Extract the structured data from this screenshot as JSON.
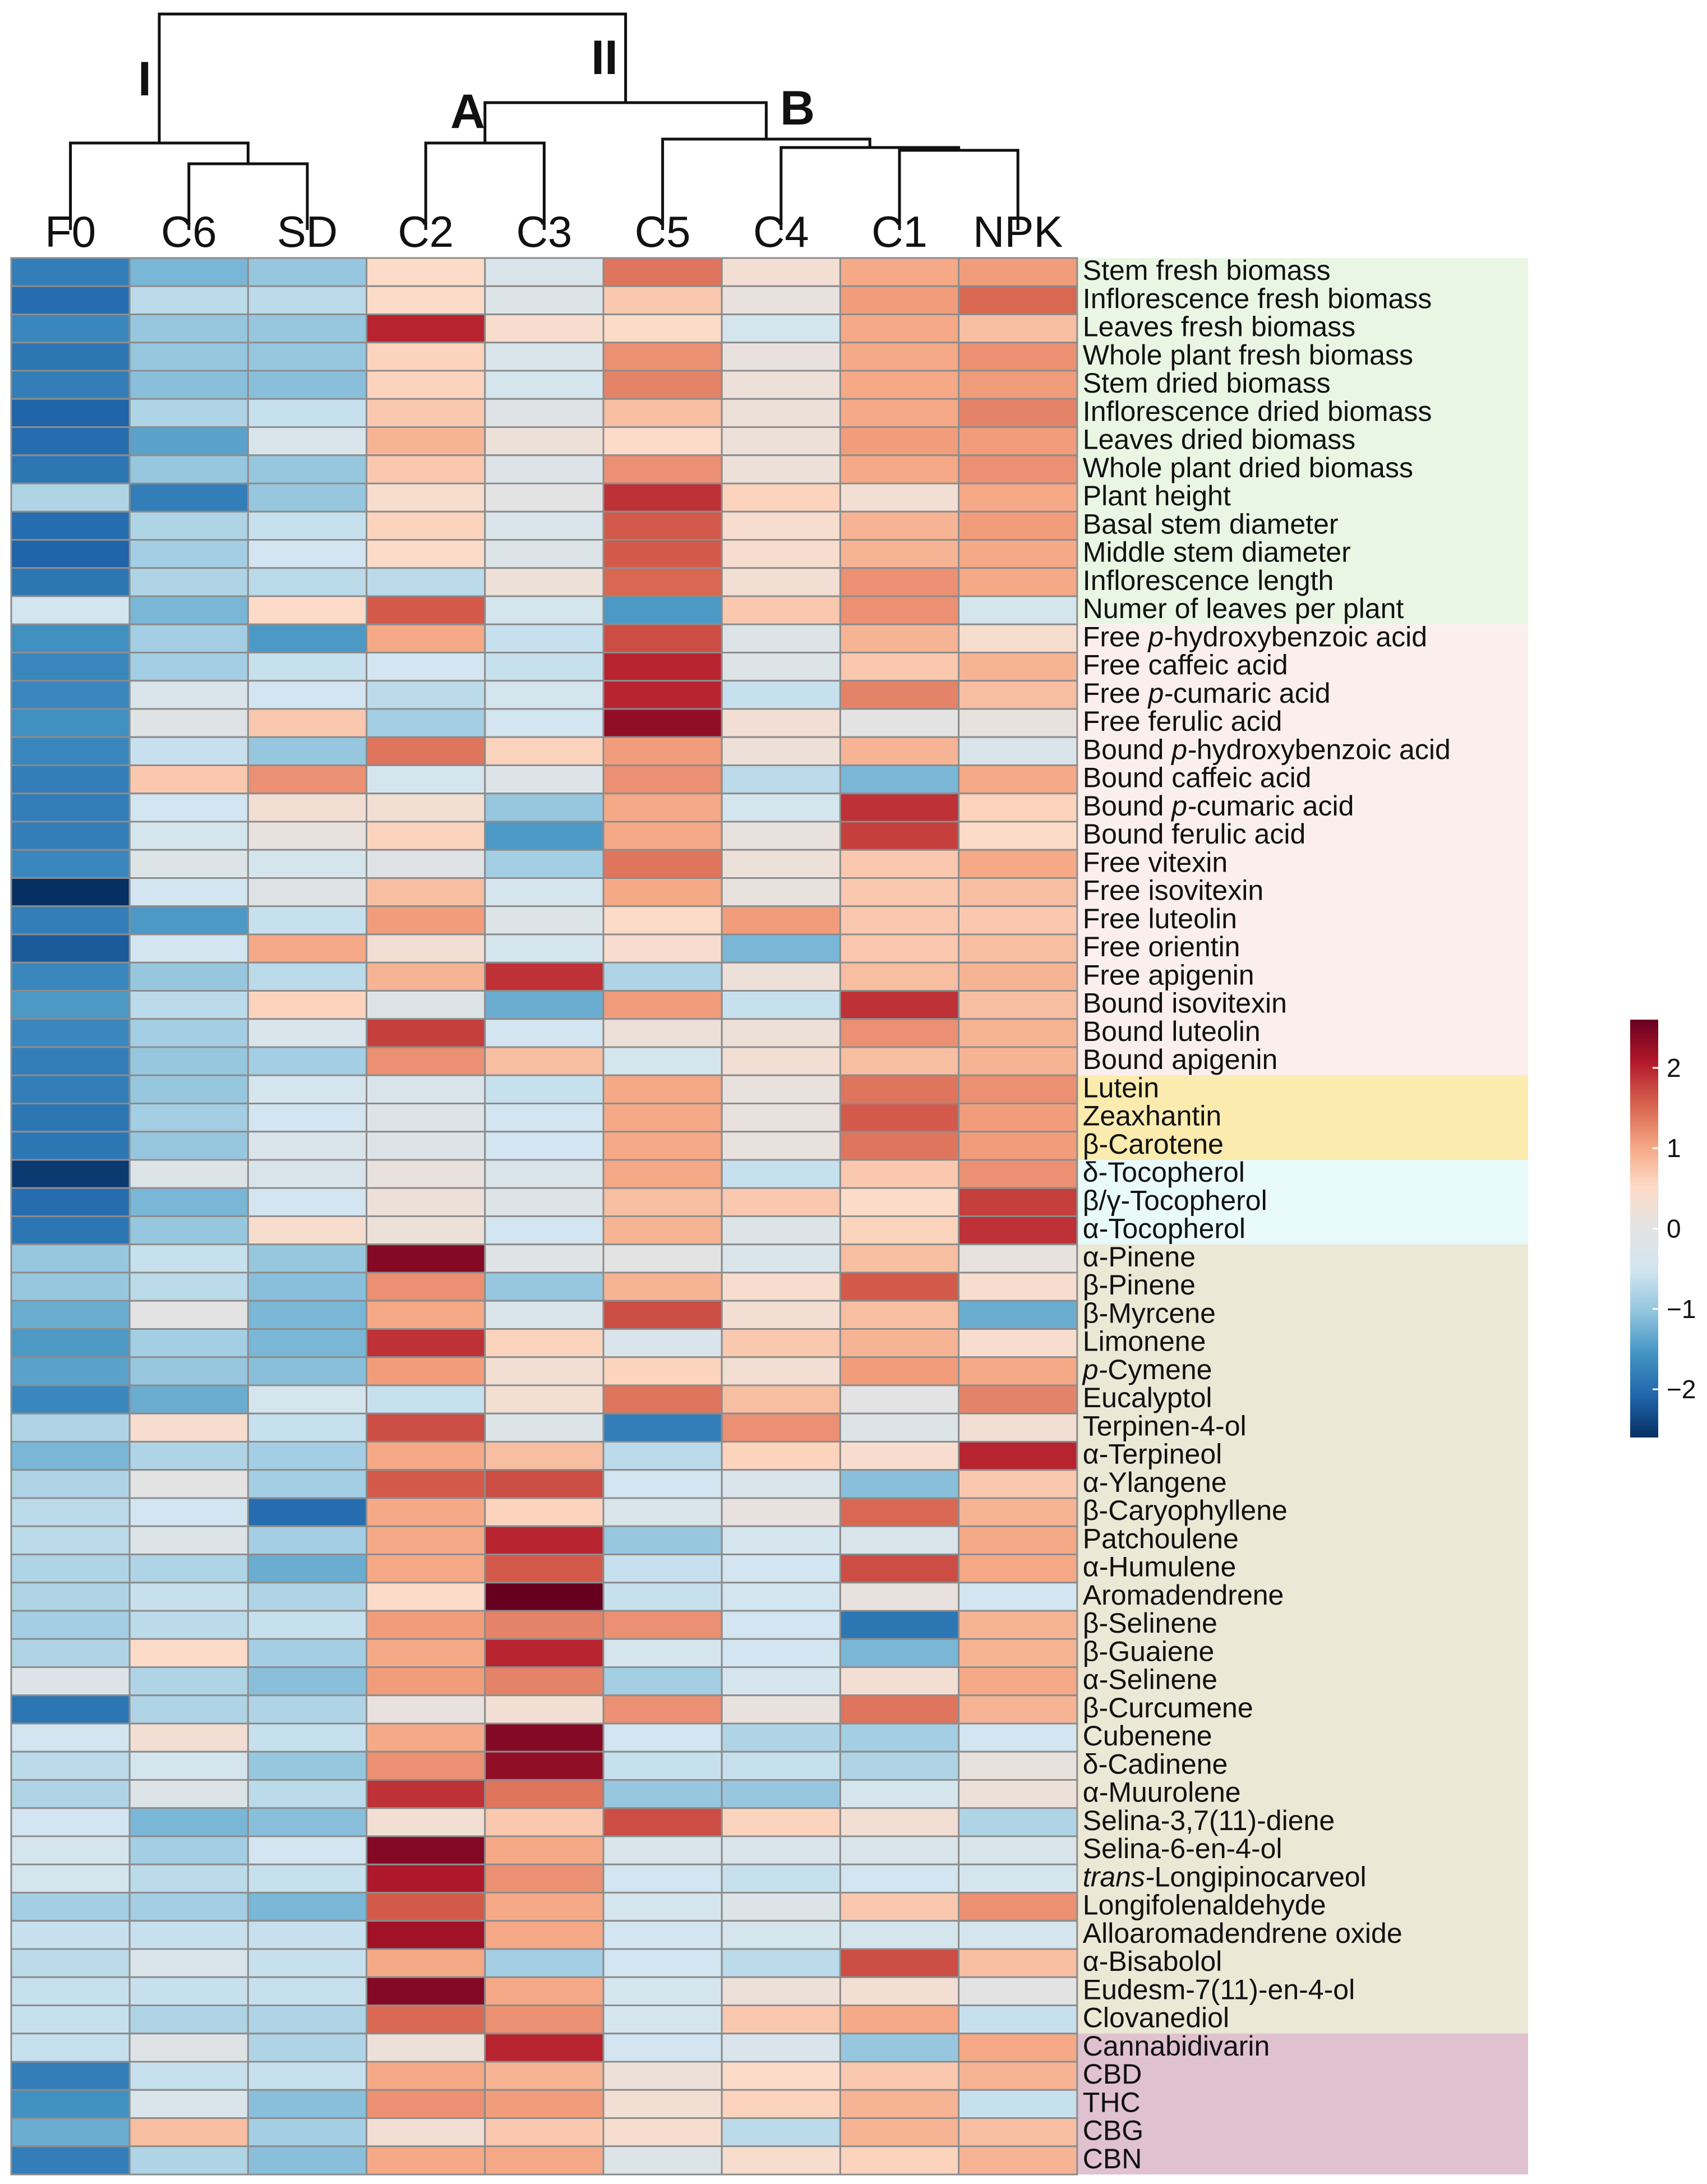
{
  "chart_data": {
    "type": "heatmap",
    "title": "",
    "columns": [
      "F0",
      "C6",
      "SD",
      "C2",
      "C3",
      "C5",
      "C4",
      "C1",
      "NPK"
    ],
    "rows": [
      {
        "label": "Stem fresh biomass",
        "group": "biomass",
        "values": [
          -1.8,
          -1.2,
          -1.0,
          0.5,
          -0.3,
          1.4,
          0.3,
          1.0,
          1.1
        ]
      },
      {
        "label": "Inflorescence fresh biomass",
        "group": "biomass",
        "values": [
          -2.0,
          -0.7,
          -0.7,
          0.5,
          -0.2,
          0.7,
          0.1,
          1.1,
          1.5
        ]
      },
      {
        "label": "Leaves fresh biomass",
        "group": "biomass",
        "values": [
          -1.7,
          -1.0,
          -1.0,
          2.0,
          0.4,
          0.5,
          -0.4,
          1.0,
          0.8
        ]
      },
      {
        "label": "Whole plant fresh biomass",
        "group": "biomass",
        "values": [
          -1.9,
          -1.0,
          -1.0,
          0.6,
          -0.3,
          1.2,
          0.1,
          1.0,
          1.2
        ]
      },
      {
        "label": "Stem dried biomass",
        "group": "biomass",
        "values": [
          -1.8,
          -1.1,
          -1.1,
          0.6,
          -0.4,
          1.3,
          0.2,
          1.0,
          1.1
        ]
      },
      {
        "label": "Inflorescence dried biomass",
        "group": "biomass",
        "values": [
          -2.1,
          -0.8,
          -0.6,
          0.7,
          -0.1,
          0.8,
          0.2,
          1.0,
          1.3
        ]
      },
      {
        "label": "Leaves dried biomass",
        "group": "biomass",
        "values": [
          -2.0,
          -1.4,
          -0.3,
          0.9,
          0.2,
          0.5,
          0.2,
          1.1,
          1.1
        ]
      },
      {
        "label": "Whole plant dried biomass",
        "group": "biomass",
        "values": [
          -1.9,
          -1.0,
          -1.0,
          0.7,
          -0.2,
          1.2,
          0.2,
          1.0,
          1.2
        ]
      },
      {
        "label": "Plant height",
        "group": "biomass",
        "values": [
          -0.8,
          -1.8,
          -1.0,
          0.4,
          0.0,
          1.9,
          0.6,
          0.3,
          1.0
        ]
      },
      {
        "label": "Basal stem diameter",
        "group": "biomass",
        "values": [
          -2.0,
          -0.8,
          -0.6,
          0.6,
          -0.3,
          1.6,
          0.4,
          0.9,
          1.1
        ]
      },
      {
        "label": "Middle stem diameter",
        "group": "biomass",
        "values": [
          -2.1,
          -0.9,
          -0.5,
          0.5,
          -0.2,
          1.6,
          0.4,
          0.9,
          1.0
        ]
      },
      {
        "label": "Inflorescence length",
        "group": "biomass",
        "values": [
          -1.9,
          -0.8,
          -0.7,
          -0.7,
          0.2,
          1.5,
          0.3,
          1.2,
          1.0
        ]
      },
      {
        "label": "Numer of leaves per plant",
        "group": "biomass",
        "values": [
          -0.5,
          -1.2,
          0.5,
          1.6,
          -0.4,
          -1.5,
          0.7,
          1.2,
          -0.4
        ]
      },
      {
        "label": "Free p-hydroxybenzoic acid",
        "group": "phenolic",
        "values": [
          -1.6,
          -0.9,
          -1.5,
          1.0,
          -0.6,
          1.7,
          -0.2,
          0.9,
          0.4
        ]
      },
      {
        "label": "Free caffeic acid",
        "group": "phenolic",
        "values": [
          -1.7,
          -0.9,
          -0.6,
          -0.5,
          -0.6,
          2.0,
          -0.2,
          0.7,
          0.9
        ]
      },
      {
        "label": "Free p-cumaric acid",
        "group": "phenolic",
        "values": [
          -1.7,
          -0.3,
          -0.5,
          -0.7,
          -0.4,
          2.0,
          -0.6,
          1.3,
          0.8
        ]
      },
      {
        "label": "Free ferulic acid",
        "group": "phenolic",
        "values": [
          -1.6,
          -0.1,
          0.7,
          -0.9,
          -0.5,
          2.3,
          0.3,
          0.0,
          0.1
        ]
      },
      {
        "label": "Bound p-hydroxybenzoic acid",
        "group": "phenolic",
        "values": [
          -1.7,
          -0.6,
          -1.0,
          1.4,
          0.6,
          1.1,
          0.2,
          0.9,
          -0.3
        ]
      },
      {
        "label": "Bound caffeic acid",
        "group": "phenolic",
        "values": [
          -1.8,
          0.7,
          1.2,
          -0.4,
          -0.2,
          1.2,
          -0.7,
          -1.2,
          1.0
        ]
      },
      {
        "label": "Bound p-cumaric acid",
        "group": "phenolic",
        "values": [
          -1.8,
          -0.5,
          0.3,
          0.3,
          -1.0,
          1.0,
          -0.4,
          1.9,
          0.6
        ]
      },
      {
        "label": "Bound ferulic acid",
        "group": "phenolic",
        "values": [
          -1.8,
          -0.4,
          0.1,
          0.6,
          -1.5,
          1.0,
          0.1,
          1.8,
          0.5
        ]
      },
      {
        "label": "Free vitexin",
        "group": "phenolic",
        "values": [
          -1.7,
          -0.2,
          -0.4,
          -0.1,
          -0.9,
          1.4,
          0.2,
          0.7,
          1.0
        ]
      },
      {
        "label": "Free isovitexin",
        "group": "phenolic",
        "values": [
          -2.6,
          -0.5,
          -0.1,
          0.8,
          -0.4,
          1.0,
          0.1,
          0.7,
          0.8
        ]
      },
      {
        "label": "Free luteolin",
        "group": "phenolic",
        "values": [
          -1.8,
          -1.5,
          -0.6,
          1.1,
          -0.2,
          0.5,
          1.1,
          0.7,
          0.7
        ]
      },
      {
        "label": "Free orientin",
        "group": "phenolic",
        "values": [
          -2.2,
          -0.5,
          1.0,
          0.3,
          -0.4,
          0.4,
          -1.2,
          0.7,
          0.8
        ]
      },
      {
        "label": "Free apigenin",
        "group": "phenolic",
        "values": [
          -1.7,
          -1.0,
          -0.7,
          0.9,
          1.9,
          -0.8,
          0.2,
          0.8,
          0.9
        ]
      },
      {
        "label": "Bound isovitexin",
        "group": "phenolic",
        "values": [
          -1.5,
          -0.7,
          0.6,
          -0.2,
          -1.3,
          1.1,
          -0.6,
          1.9,
          0.8
        ]
      },
      {
        "label": "Bound luteolin",
        "group": "phenolic",
        "values": [
          -1.7,
          -0.9,
          -0.3,
          1.8,
          -0.5,
          0.2,
          0.2,
          1.2,
          0.9
        ]
      },
      {
        "label": "Bound apigenin",
        "group": "phenolic",
        "values": [
          -1.8,
          -1.0,
          -0.9,
          1.2,
          0.8,
          -0.4,
          0.3,
          0.8,
          0.9
        ]
      },
      {
        "label": "Lutein",
        "group": "carotenoid",
        "values": [
          -1.8,
          -1.0,
          -0.4,
          -0.3,
          -0.6,
          1.0,
          0.1,
          1.4,
          1.2
        ]
      },
      {
        "label": "Zeaxhantin",
        "group": "carotenoid",
        "values": [
          -1.9,
          -0.9,
          -0.5,
          -0.2,
          -0.5,
          1.0,
          0.1,
          1.6,
          1.1
        ]
      },
      {
        "label": "β-Carotene",
        "group": "carotenoid",
        "values": [
          -1.9,
          -1.0,
          -0.3,
          -0.2,
          -0.5,
          1.0,
          0.1,
          1.4,
          1.1
        ]
      },
      {
        "label": "δ-Tocopherol",
        "group": "tocopherol",
        "values": [
          -2.5,
          -0.2,
          -0.3,
          0.1,
          -0.3,
          1.0,
          -0.6,
          0.7,
          1.2
        ]
      },
      {
        "label": "β/γ-Tocopherol",
        "group": "tocopherol",
        "values": [
          -2.0,
          -1.2,
          -0.5,
          0.2,
          -0.2,
          0.8,
          0.7,
          0.5,
          1.8
        ]
      },
      {
        "label": "α-Tocopherol",
        "group": "tocopherol",
        "values": [
          -1.9,
          -1.0,
          0.4,
          0.2,
          -0.5,
          0.9,
          -0.2,
          0.6,
          1.9
        ]
      },
      {
        "label": "α-Pinene",
        "group": "terpene",
        "values": [
          -1.0,
          -0.6,
          -1.0,
          2.4,
          -0.1,
          0.0,
          -0.3,
          0.8,
          0.1
        ]
      },
      {
        "label": "β-Pinene",
        "group": "terpene",
        "values": [
          -1.0,
          -0.7,
          -1.1,
          1.2,
          -1.0,
          0.9,
          0.4,
          1.6,
          0.4
        ]
      },
      {
        "label": "β-Myrcene",
        "group": "terpene",
        "values": [
          -1.3,
          0.0,
          -1.2,
          1.0,
          -0.3,
          1.7,
          0.3,
          0.8,
          -1.3
        ]
      },
      {
        "label": "Limonene",
        "group": "terpene",
        "values": [
          -1.5,
          -0.9,
          -1.2,
          1.9,
          0.6,
          -0.3,
          0.7,
          0.9,
          0.4
        ]
      },
      {
        "label": "p-Cymene",
        "group": "terpene",
        "values": [
          -1.4,
          -1.0,
          -1.1,
          1.1,
          0.3,
          0.6,
          0.3,
          1.1,
          1.0
        ]
      },
      {
        "label": "Eucalyptol",
        "group": "terpene",
        "values": [
          -1.7,
          -1.3,
          -0.4,
          -0.6,
          0.3,
          1.4,
          0.8,
          0.0,
          1.3
        ]
      },
      {
        "label": "Terpinen-4-ol",
        "group": "terpene",
        "values": [
          -0.8,
          0.4,
          -0.6,
          1.7,
          -0.2,
          -1.8,
          1.2,
          -0.2,
          0.3
        ]
      },
      {
        "label": "α-Terpineol",
        "group": "terpene",
        "values": [
          -1.2,
          -0.8,
          -0.9,
          1.0,
          0.8,
          -0.7,
          0.6,
          0.4,
          2.0
        ]
      },
      {
        "label": "α-Ylangene",
        "group": "terpene",
        "values": [
          -0.8,
          0.0,
          -0.9,
          1.6,
          1.7,
          -0.5,
          -0.3,
          -1.1,
          0.7
        ]
      },
      {
        "label": "β-Caryophyllene",
        "group": "terpene",
        "values": [
          -0.7,
          -0.5,
          -2.0,
          1.0,
          0.6,
          -0.3,
          0.1,
          1.5,
          0.9
        ]
      },
      {
        "label": "Patchoulene",
        "group": "terpene",
        "values": [
          -0.7,
          -0.2,
          -0.9,
          1.0,
          2.0,
          -1.0,
          -0.4,
          -0.3,
          1.0
        ]
      },
      {
        "label": "α-Humulene",
        "group": "terpene",
        "values": [
          -0.8,
          -0.8,
          -1.3,
          1.0,
          1.6,
          -0.6,
          -0.5,
          1.7,
          1.0
        ]
      },
      {
        "label": "Aromadendrene",
        "group": "terpene",
        "values": [
          -0.8,
          -0.6,
          -0.8,
          0.5,
          2.6,
          -0.6,
          -0.5,
          0.1,
          -0.5
        ]
      },
      {
        "label": "β-Selinene",
        "group": "terpene",
        "values": [
          -0.9,
          -0.7,
          -0.6,
          1.1,
          1.3,
          1.2,
          -0.5,
          -1.9,
          0.9
        ]
      },
      {
        "label": "β-Guaiene",
        "group": "terpene",
        "values": [
          -0.8,
          0.5,
          -0.9,
          1.0,
          2.0,
          -0.4,
          -0.5,
          -1.2,
          0.9
        ]
      },
      {
        "label": "α-Selinene",
        "group": "terpene",
        "values": [
          -0.2,
          -0.8,
          -1.1,
          1.1,
          1.3,
          -0.9,
          -0.4,
          0.3,
          1.0
        ]
      },
      {
        "label": "β-Curcumene",
        "group": "terpene",
        "values": [
          -1.9,
          -0.8,
          -0.8,
          0.1,
          0.3,
          1.2,
          0.1,
          1.4,
          0.9
        ]
      },
      {
        "label": "Cubenene",
        "group": "terpene",
        "values": [
          -0.5,
          0.3,
          -0.6,
          1.0,
          2.4,
          -0.5,
          -0.8,
          -0.9,
          -0.5
        ]
      },
      {
        "label": "δ-Cadinene",
        "group": "terpene",
        "values": [
          -0.7,
          -0.4,
          -1.0,
          1.2,
          2.3,
          -0.6,
          -0.6,
          -0.8,
          0.1
        ]
      },
      {
        "label": "α-Muurolene",
        "group": "terpene",
        "values": [
          -0.8,
          -0.2,
          -0.7,
          1.9,
          1.4,
          -1.0,
          -1.0,
          -0.4,
          0.2
        ]
      },
      {
        "label": "Selina-3,7(11)-diene",
        "group": "terpene",
        "values": [
          -0.5,
          -1.2,
          -1.1,
          0.3,
          0.7,
          1.7,
          0.6,
          0.3,
          -0.8
        ]
      },
      {
        "label": "Selina-6-en-4-ol",
        "group": "terpene",
        "values": [
          -0.4,
          -0.9,
          -0.5,
          2.4,
          1.0,
          -0.3,
          -0.3,
          -0.3,
          -0.3
        ]
      },
      {
        "label": "trans-Longipinocarveol",
        "group": "terpene",
        "values": [
          -0.4,
          -0.7,
          -0.6,
          2.1,
          1.2,
          -0.5,
          -0.6,
          -0.5,
          -0.4
        ]
      },
      {
        "label": "Longifolenaldehyde",
        "group": "terpene",
        "values": [
          -0.9,
          -0.9,
          -1.2,
          1.6,
          1.0,
          -0.4,
          -0.2,
          0.7,
          1.2
        ]
      },
      {
        "label": "Alloaromadendrene oxide",
        "group": "terpene",
        "values": [
          -0.6,
          -0.6,
          -0.6,
          2.2,
          1.0,
          -0.5,
          -0.4,
          -0.4,
          -0.4
        ]
      },
      {
        "label": "α-Bisabolol",
        "group": "terpene",
        "values": [
          -0.7,
          -0.3,
          -0.6,
          1.0,
          -0.9,
          -0.5,
          -0.7,
          1.7,
          0.8
        ]
      },
      {
        "label": "Eudesm-7(11)-en-4-ol",
        "group": "terpene",
        "values": [
          -0.6,
          -0.6,
          -0.6,
          2.4,
          1.0,
          -0.4,
          0.2,
          0.3,
          0.0
        ]
      },
      {
        "label": "Clovanediol",
        "group": "terpene",
        "values": [
          -0.6,
          -0.8,
          -0.8,
          1.5,
          1.2,
          -0.4,
          0.7,
          1.0,
          -0.6
        ]
      },
      {
        "label": "Cannabidivarin",
        "group": "cannabinoid",
        "values": [
          -0.6,
          -0.1,
          -0.8,
          0.2,
          2.0,
          -0.5,
          -0.3,
          -1.0,
          1.0
        ]
      },
      {
        "label": "CBD",
        "group": "cannabinoid",
        "values": [
          -1.8,
          -0.6,
          -0.6,
          1.0,
          0.9,
          0.2,
          0.5,
          0.7,
          0.9
        ]
      },
      {
        "label": "THC",
        "group": "cannabinoid",
        "values": [
          -1.6,
          -0.3,
          -1.1,
          1.2,
          1.1,
          0.3,
          0.6,
          0.9,
          -0.6
        ]
      },
      {
        "label": "CBG",
        "group": "cannabinoid",
        "values": [
          -1.3,
          0.8,
          -0.9,
          0.3,
          0.7,
          0.4,
          -0.7,
          0.9,
          0.8
        ]
      },
      {
        "label": "CBN",
        "group": "cannabinoid",
        "values": [
          -1.8,
          -0.8,
          -1.1,
          1.0,
          1.0,
          -0.2,
          0.4,
          0.6,
          0.9
        ]
      }
    ],
    "group_colors": {
      "biomass": "#eaf6e4",
      "phenolic": "#fbefee",
      "carotenoid": "#fbebae",
      "tocopherol": "#e9fafa",
      "terpene": "#ebe8d6",
      "cannabinoid": "#dfc1d0"
    },
    "color_scale": {
      "min": -2.6,
      "max": 2.6,
      "stops": [
        "#053061",
        "#2166ac",
        "#4393c3",
        "#92c5de",
        "#d1e5f0",
        "#e3e3e3",
        "#fddbc7",
        "#f4a582",
        "#d6604d",
        "#b2182b",
        "#67001f"
      ],
      "ticks": [
        2,
        1,
        0,
        -1,
        -2
      ]
    },
    "legend_placement": "right",
    "dendrogram": {
      "top_split": [
        "I",
        "II"
      ],
      "clusters": {
        "I": [
          "F0",
          "C6",
          "SD"
        ],
        "A": [
          "C2",
          "C3"
        ],
        "B": [
          "C5",
          "C4",
          "C1",
          "NPK"
        ]
      },
      "labels": [
        "I",
        "II",
        "A",
        "B"
      ]
    }
  }
}
